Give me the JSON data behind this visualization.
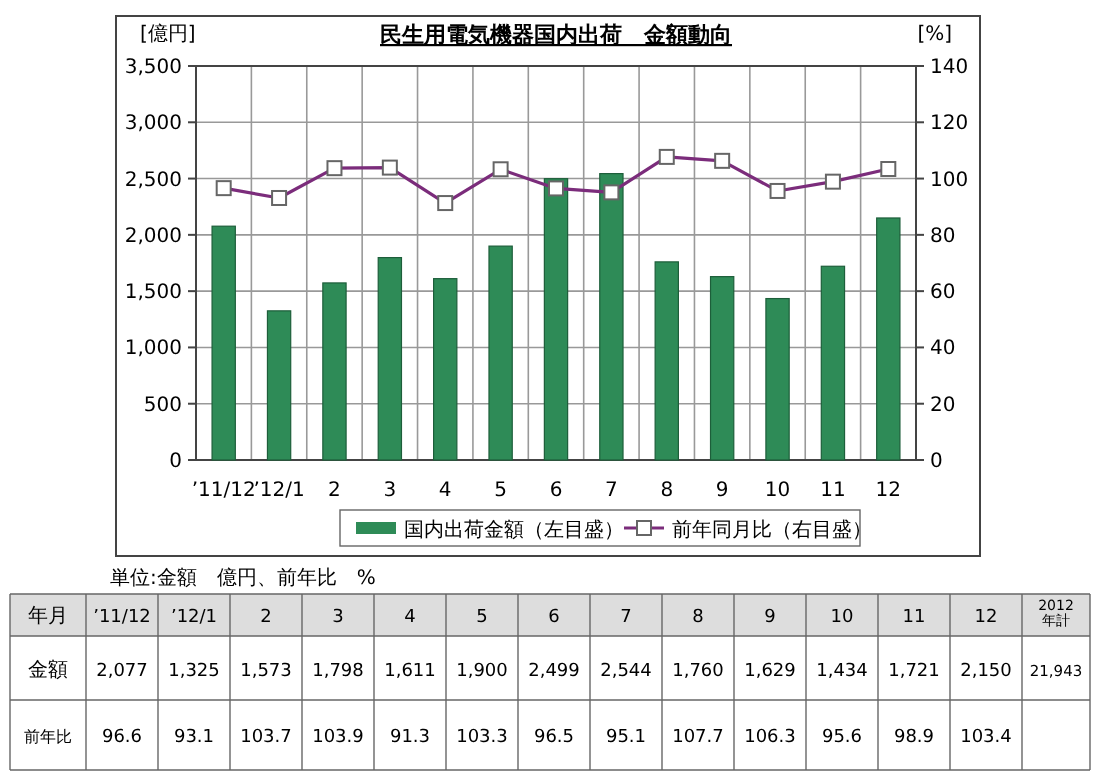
{
  "chart_data": {
    "type": "bar",
    "title": "民生用電気機器国内出荷　金額動向",
    "ylabel": "[億円]",
    "y2label": "[%]",
    "categories": [
      "’11/12",
      "’12/1",
      "2",
      "3",
      "4",
      "5",
      "6",
      "7",
      "8",
      "9",
      "10",
      "11",
      "12"
    ],
    "series": [
      {
        "name": "国内出荷金額（左目盛）",
        "color": "#2e8b57",
        "values": [
          2077,
          1325,
          1573,
          1798,
          1611,
          1900,
          2499,
          2544,
          1760,
          1629,
          1434,
          1721,
          2150
        ]
      },
      {
        "type": "line",
        "name": "前年同月比（右目盛）",
        "color": "#7b2c7b",
        "axis": "y2",
        "marker": "square",
        "values": [
          96.6,
          93.1,
          103.7,
          103.9,
          91.3,
          103.3,
          96.5,
          95.1,
          107.7,
          106.3,
          95.6,
          98.9,
          103.4
        ]
      }
    ],
    "ylim": [
      0,
      3500
    ],
    "yticks": [
      0,
      500,
      {
        "value": 1000,
        "label": "1,000"
      },
      {
        "value": 1500,
        "label": "1,500"
      },
      {
        "value": 2000,
        "label": "2,000"
      },
      {
        "value": 2500,
        "label": "2,500"
      },
      {
        "value": 3000,
        "label": "3,000"
      },
      {
        "value": 3500,
        "label": "3,500"
      }
    ],
    "y2lim": [
      0,
      140
    ],
    "y2ticks": [
      0,
      20,
      40,
      60,
      80,
      100,
      120,
      140
    ],
    "grid": true,
    "legend": "bottom",
    "annotations": [
      "単位:金額　億円、前年比　%",
      "年月",
      "金額",
      "前年比",
      "2012\n年計",
      "21,943",
      "2,077",
      "1,325",
      "1,573",
      "1,798",
      "1,611",
      "1,900",
      "2,499",
      "2,544",
      "1,760",
      "1,629",
      "1,434",
      "1,721",
      "2,150",
      "96.6",
      "93.1",
      "103.7",
      "103.9",
      "91.3",
      "103.3",
      "96.5",
      "95.1",
      "107.7",
      "106.3",
      "95.6",
      "98.9",
      "103.4"
    ]
  }
}
